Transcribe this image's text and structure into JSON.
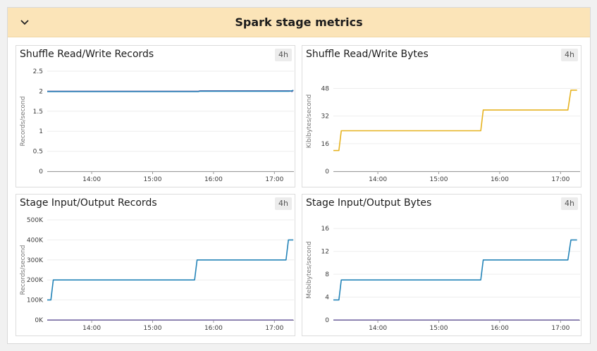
{
  "group": {
    "title": "Spark stage metrics",
    "collapse_icon": "chevron-down-icon"
  },
  "colors": {
    "header_bg": "#fbe4b8",
    "purple": "#7b6dab",
    "gold": "#e6b321",
    "blue": "#2484b8"
  },
  "chart_data": [
    {
      "title": "Shuffle Read/Write Records",
      "range_badge": "4h",
      "type": "line",
      "ylabel": "Records/second",
      "yticks": [
        "0",
        "0.5",
        "1",
        "1.5",
        "2",
        "2.5"
      ],
      "ylim": [
        0,
        2.5
      ],
      "xticks": [
        "14:00",
        "15:00",
        "16:00",
        "17:00"
      ],
      "xlim_hours": [
        13.27,
        17.32
      ],
      "series": [
        {
          "color": "#7b6dab",
          "points": [
            [
              13.27,
              2.0
            ],
            [
              15.75,
              2.0
            ],
            [
              15.78,
              2.01
            ],
            [
              17.25,
              2.01
            ],
            [
              17.29,
              1.99
            ],
            [
              17.31,
              2.03
            ]
          ]
        },
        {
          "color": "#2484b8",
          "points": [
            [
              13.27,
              1.99
            ],
            [
              15.75,
              1.99
            ],
            [
              15.78,
              2.0
            ],
            [
              17.25,
              2.0
            ],
            [
              17.31,
              2.02
            ]
          ]
        }
      ]
    },
    {
      "title": "Shuffle Read/Write Bytes",
      "range_badge": "4h",
      "type": "line",
      "ylabel": "Kibibytes/second",
      "yticks": [
        "0",
        "16",
        "32",
        "48"
      ],
      "ylim": [
        0,
        58
      ],
      "xticks": [
        "14:00",
        "15:00",
        "16:00",
        "17:00"
      ],
      "xlim_hours": [
        13.27,
        17.32
      ],
      "series": [
        {
          "color": "#e6b321",
          "points": [
            [
              13.27,
              12
            ],
            [
              13.36,
              12
            ],
            [
              13.4,
              23.5
            ],
            [
              15.69,
              23.5
            ],
            [
              15.73,
              35.5
            ],
            [
              17.12,
              35.5
            ],
            [
              17.17,
              47
            ],
            [
              17.27,
              47
            ]
          ]
        }
      ]
    },
    {
      "title": "Stage Input/Output Records",
      "range_badge": "4h",
      "type": "line",
      "ylabel": "Records/second",
      "yticks": [
        "0K",
        "100K",
        "200K",
        "300K",
        "400K",
        "500K"
      ],
      "ylim": [
        0,
        500000
      ],
      "xticks": [
        "14:00",
        "15:00",
        "16:00",
        "17:00"
      ],
      "xlim_hours": [
        13.27,
        17.32
      ],
      "series": [
        {
          "color": "#2484b8",
          "points": [
            [
              13.27,
              100000
            ],
            [
              13.33,
              100000
            ],
            [
              13.37,
              200000
            ],
            [
              15.69,
              200000
            ],
            [
              15.73,
              300000
            ],
            [
              17.19,
              300000
            ],
            [
              17.23,
              400000
            ],
            [
              17.31,
              400000
            ]
          ]
        },
        {
          "color": "#7b6dab",
          "points": [
            [
              13.27,
              0
            ],
            [
              17.31,
              0
            ]
          ]
        }
      ]
    },
    {
      "title": "Stage Input/Output Bytes",
      "range_badge": "4h",
      "type": "line",
      "ylabel": "Mebibytes/second",
      "yticks": [
        "0",
        "4",
        "8",
        "12",
        "16"
      ],
      "ylim": [
        0,
        17.5
      ],
      "xticks": [
        "14:00",
        "15:00",
        "16:00",
        "17:00"
      ],
      "xlim_hours": [
        13.27,
        17.32
      ],
      "series": [
        {
          "color": "#2484b8",
          "points": [
            [
              13.27,
              3.5
            ],
            [
              13.36,
              3.5
            ],
            [
              13.4,
              7
            ],
            [
              15.69,
              7
            ],
            [
              15.73,
              10.5
            ],
            [
              17.12,
              10.5
            ],
            [
              17.17,
              14
            ],
            [
              17.27,
              14
            ]
          ]
        },
        {
          "color": "#7b6dab",
          "points": [
            [
              13.27,
              0
            ],
            [
              17.31,
              0
            ]
          ]
        }
      ]
    }
  ]
}
